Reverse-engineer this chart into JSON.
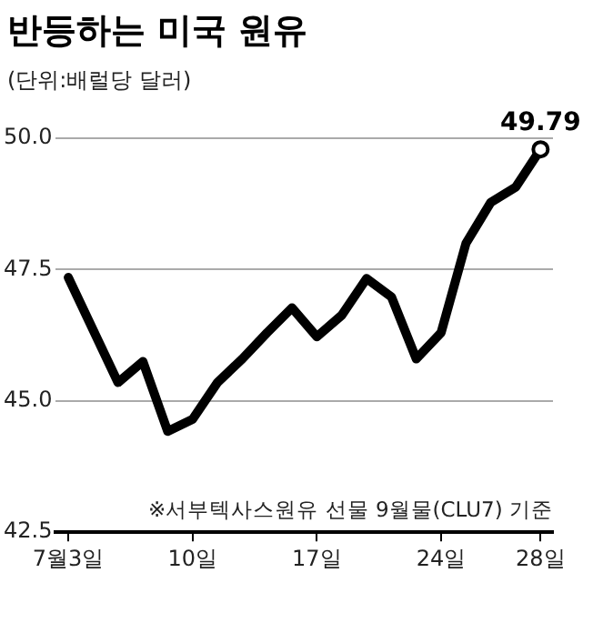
{
  "chart_data": {
    "type": "line",
    "title": "반등하는 미국 원유",
    "subtitle": "(단위:배럴당 달러)",
    "categories": [
      "7월3일",
      null,
      null,
      null,
      null,
      "10일",
      null,
      null,
      null,
      null,
      "17일",
      null,
      null,
      null,
      null,
      "24일",
      null,
      null,
      null,
      "28일"
    ],
    "series": [
      {
        "color": "#000000",
        "values": [
          47.35,
          46.35,
          45.35,
          45.75,
          44.42,
          44.65,
          45.35,
          45.8,
          46.3,
          46.77,
          46.22,
          46.63,
          47.33,
          46.98,
          45.8,
          46.3,
          48.0,
          48.78,
          49.07,
          49.79
        ],
        "value_labels": [
          null,
          null,
          null,
          null,
          null,
          null,
          null,
          null,
          null,
          null,
          null,
          null,
          null,
          null,
          null,
          null,
          null,
          null,
          null,
          "49.79"
        ]
      }
    ],
    "ylim": [
      42.5,
      50
    ],
    "yticks": [
      {
        "value": 42.5,
        "label": "42.5"
      },
      {
        "value": 45,
        "label": "45.0"
      },
      {
        "value": 47.5,
        "label": "47.5"
      },
      {
        "value": 50,
        "label": "50.0"
      }
    ],
    "grid": "y",
    "legend": false,
    "annotations": [
      "※서부텍사스원유 선물 9월물(CLU7) 기준"
    ]
  }
}
